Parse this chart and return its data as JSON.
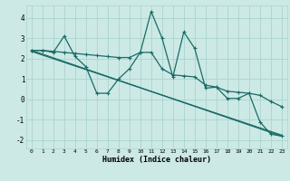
{
  "xlabel": "Humidex (Indice chaleur)",
  "bg_color": "#cce9e5",
  "grid_color": "#aad4cf",
  "line_color": "#1a6b66",
  "xlim": [
    -0.5,
    23.5
  ],
  "ylim": [
    -2.4,
    4.6
  ],
  "xticks": [
    0,
    1,
    2,
    3,
    4,
    5,
    6,
    7,
    8,
    9,
    10,
    11,
    12,
    13,
    14,
    15,
    16,
    17,
    18,
    19,
    20,
    21,
    22,
    23
  ],
  "yticks": [
    -2,
    -1,
    0,
    1,
    2,
    3,
    4
  ],
  "series_jagged_x": [
    0,
    1,
    2,
    3,
    4,
    5,
    6,
    7,
    8,
    9,
    10,
    11,
    12,
    13,
    14,
    15,
    16,
    17,
    18,
    19,
    20,
    21,
    22,
    23
  ],
  "series_jagged_y": [
    2.4,
    2.4,
    2.3,
    3.1,
    2.1,
    1.6,
    0.3,
    0.3,
    1.0,
    1.5,
    2.3,
    4.3,
    3.0,
    1.1,
    3.3,
    2.5,
    0.55,
    0.6,
    0.05,
    0.05,
    0.3,
    -1.1,
    -1.7,
    -1.8
  ],
  "series_smooth_x": [
    0,
    1,
    2,
    3,
    4,
    5,
    6,
    7,
    8,
    9,
    10,
    11,
    12,
    13,
    14,
    15,
    16,
    17,
    18,
    19,
    20,
    21,
    22,
    23
  ],
  "series_smooth_y": [
    2.4,
    2.4,
    2.35,
    2.3,
    2.25,
    2.2,
    2.15,
    2.1,
    2.05,
    2.05,
    2.3,
    2.3,
    1.5,
    1.2,
    1.15,
    1.1,
    0.7,
    0.6,
    0.4,
    0.35,
    0.3,
    0.2,
    -0.1,
    -0.35
  ],
  "series_line1_x": [
    0,
    23
  ],
  "series_line1_y": [
    2.4,
    -1.8
  ],
  "series_line2_x": [
    0,
    23
  ],
  "series_line2_y": [
    2.35,
    -1.75
  ]
}
